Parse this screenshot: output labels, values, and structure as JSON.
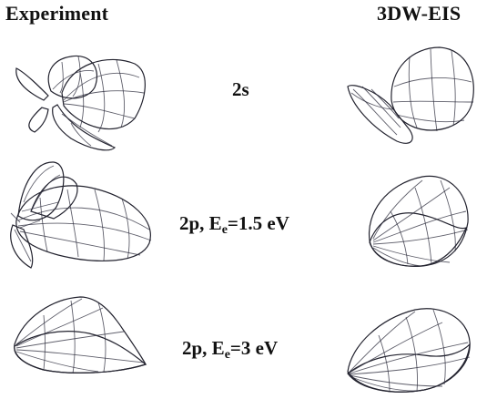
{
  "headers": {
    "left": "Experiment",
    "right": "3DW-EIS"
  },
  "rows": [
    {
      "label": "2s"
    },
    {
      "label_main": "2p, E",
      "label_sub": "e",
      "label_rest": "=1.5 eV"
    },
    {
      "label_main": "2p, E",
      "label_sub": "e",
      "label_rest": "=3 eV"
    }
  ],
  "colors": {
    "blue": "#2f4fd8",
    "red": "#e0503a",
    "orange": "#f2a25c",
    "cream": "#fbf0d8",
    "mesh": "#2a2a3a"
  }
}
